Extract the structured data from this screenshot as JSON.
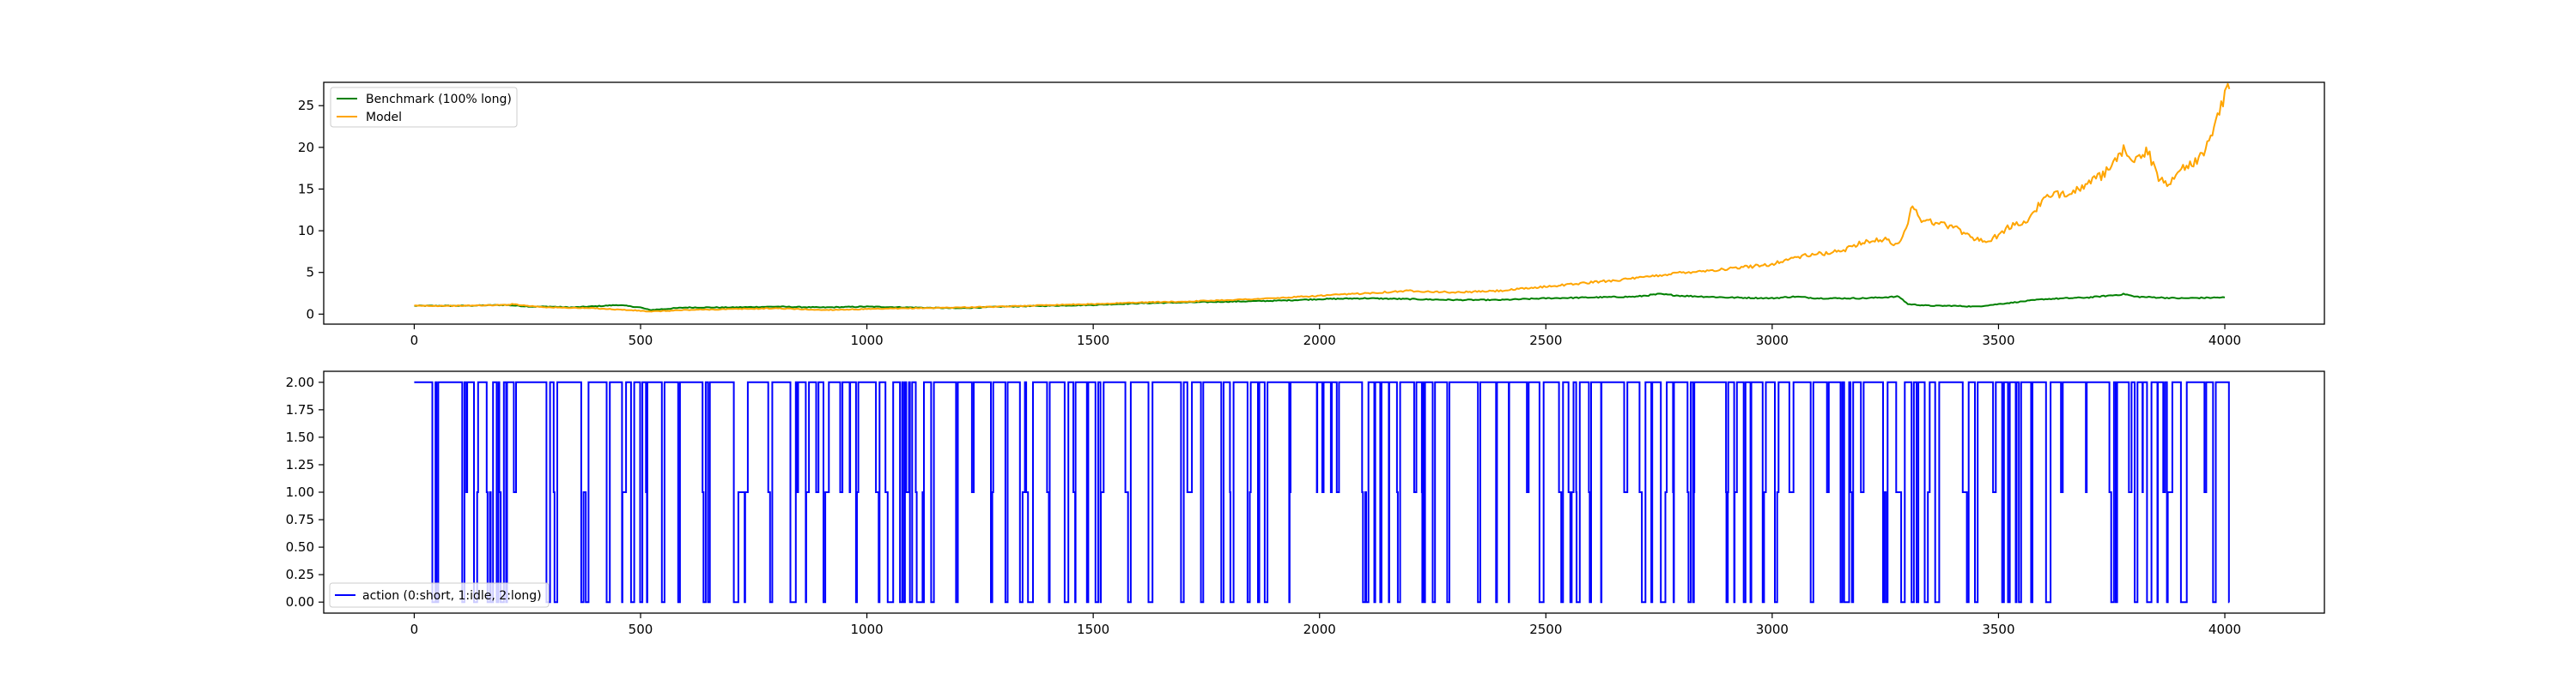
{
  "chart_data": [
    {
      "type": "line",
      "xlim": [
        -200,
        4220
      ],
      "ylim": [
        -1.2,
        27.8
      ],
      "xticks": [
        0,
        500,
        1000,
        1500,
        2000,
        2500,
        3000,
        3500,
        4000
      ],
      "yticks": [
        0,
        5,
        10,
        15,
        20,
        25
      ],
      "legend": "top-left",
      "grid": false,
      "series": [
        {
          "name": "Benchmark (100% long)",
          "color": "#008000",
          "points": [
            [
              0,
              1.0
            ],
            [
              100,
              1.0
            ],
            [
              200,
              1.1
            ],
            [
              260,
              0.9
            ],
            [
              300,
              0.9
            ],
            [
              350,
              0.8
            ],
            [
              420,
              1.0
            ],
            [
              450,
              1.1
            ],
            [
              500,
              0.8
            ],
            [
              520,
              0.5
            ],
            [
              550,
              0.6
            ],
            [
              600,
              0.8
            ],
            [
              700,
              0.8
            ],
            [
              800,
              0.9
            ],
            [
              900,
              0.8
            ],
            [
              1000,
              0.9
            ],
            [
              1100,
              0.8
            ],
            [
              1200,
              0.7
            ],
            [
              1300,
              0.9
            ],
            [
              1400,
              1.0
            ],
            [
              1500,
              1.1
            ],
            [
              1600,
              1.3
            ],
            [
              1700,
              1.4
            ],
            [
              1800,
              1.5
            ],
            [
              1900,
              1.6
            ],
            [
              2000,
              1.8
            ],
            [
              2100,
              1.9
            ],
            [
              2200,
              1.8
            ],
            [
              2300,
              1.7
            ],
            [
              2400,
              1.7
            ],
            [
              2500,
              1.9
            ],
            [
              2600,
              2.0
            ],
            [
              2700,
              2.1
            ],
            [
              2750,
              2.4
            ],
            [
              2800,
              2.2
            ],
            [
              2900,
              2.0
            ],
            [
              3000,
              1.9
            ],
            [
              3050,
              2.1
            ],
            [
              3100,
              1.9
            ],
            [
              3200,
              1.9
            ],
            [
              3280,
              2.1
            ],
            [
              3300,
              1.2
            ],
            [
              3350,
              1.0
            ],
            [
              3400,
              1.0
            ],
            [
              3450,
              0.9
            ],
            [
              3500,
              1.2
            ],
            [
              3600,
              1.8
            ],
            [
              3700,
              2.0
            ],
            [
              3780,
              2.4
            ],
            [
              3800,
              2.1
            ],
            [
              3900,
              1.9
            ],
            [
              4000,
              2.0
            ]
          ]
        },
        {
          "name": "Model",
          "color": "#ffa500",
          "points": [
            [
              0,
              1.0
            ],
            [
              100,
              1.0
            ],
            [
              200,
              1.1
            ],
            [
              220,
              1.2
            ],
            [
              250,
              1.0
            ],
            [
              300,
              0.8
            ],
            [
              400,
              0.7
            ],
            [
              500,
              0.4
            ],
            [
              520,
              0.3
            ],
            [
              600,
              0.5
            ],
            [
              700,
              0.6
            ],
            [
              800,
              0.7
            ],
            [
              900,
              0.5
            ],
            [
              1000,
              0.6
            ],
            [
              1100,
              0.7
            ],
            [
              1200,
              0.8
            ],
            [
              1300,
              0.9
            ],
            [
              1400,
              1.1
            ],
            [
              1500,
              1.2
            ],
            [
              1600,
              1.4
            ],
            [
              1700,
              1.5
            ],
            [
              1800,
              1.7
            ],
            [
              1900,
              1.9
            ],
            [
              2000,
              2.2
            ],
            [
              2100,
              2.5
            ],
            [
              2200,
              2.8
            ],
            [
              2300,
              2.6
            ],
            [
              2400,
              2.8
            ],
            [
              2500,
              3.3
            ],
            [
              2600,
              3.8
            ],
            [
              2700,
              4.3
            ],
            [
              2800,
              5.0
            ],
            [
              2900,
              5.4
            ],
            [
              3000,
              6.0
            ],
            [
              3050,
              6.8
            ],
            [
              3100,
              7.2
            ],
            [
              3150,
              7.5
            ],
            [
              3200,
              8.7
            ],
            [
              3250,
              8.9
            ],
            [
              3280,
              8.3
            ],
            [
              3300,
              11.0
            ],
            [
              3310,
              13.3
            ],
            [
              3330,
              11.3
            ],
            [
              3400,
              10.5
            ],
            [
              3450,
              9.0
            ],
            [
              3480,
              8.7
            ],
            [
              3520,
              10.4
            ],
            [
              3560,
              11.0
            ],
            [
              3600,
              13.8
            ],
            [
              3650,
              14.6
            ],
            [
              3700,
              15.6
            ],
            [
              3750,
              17.5
            ],
            [
              3780,
              19.9
            ],
            [
              3800,
              18.5
            ],
            [
              3830,
              19.5
            ],
            [
              3850,
              16.5
            ],
            [
              3880,
              15.6
            ],
            [
              3900,
              17.5
            ],
            [
              3950,
              18.8
            ],
            [
              3980,
              23.0
            ],
            [
              4000,
              26.5
            ],
            [
              4010,
              27.0
            ]
          ]
        }
      ]
    },
    {
      "type": "line",
      "xlim": [
        -200,
        4220
      ],
      "ylim": [
        -0.1,
        2.1
      ],
      "xticks": [
        0,
        500,
        1000,
        1500,
        2000,
        2500,
        3000,
        3500,
        4000
      ],
      "yticks": [
        0.0,
        0.25,
        0.5,
        0.75,
        1.0,
        1.25,
        1.5,
        1.75,
        2.0
      ],
      "ytick_labels": [
        "0.00",
        "0.25",
        "0.50",
        "0.75",
        "1.00",
        "1.25",
        "1.50",
        "1.75",
        "2.00"
      ],
      "legend": "bottom-left",
      "grid": false,
      "series": [
        {
          "name": "action (0:short, 1:idle, 2:long)",
          "color": "#0000ff",
          "drawstyle": "steps",
          "values_by_segment": [
            {
              "x_range": [
                0,
                40
              ],
              "dominant": 2
            },
            {
              "x_range": [
                40,
                4010
              ],
              "pattern": "frequent switching between 0, 1 and 2; mostly 2"
            }
          ],
          "x_end": 4010
        }
      ]
    }
  ]
}
